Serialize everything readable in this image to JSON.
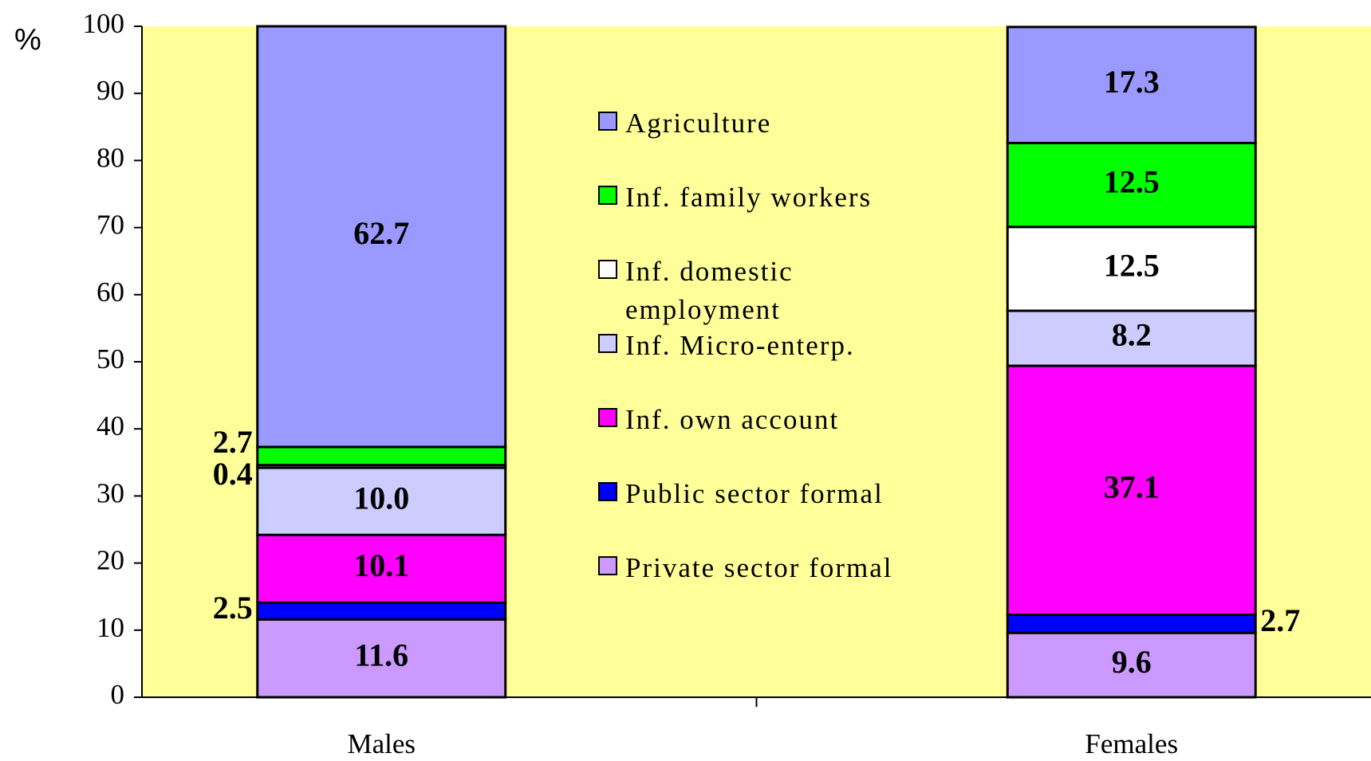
{
  "chart_data": {
    "type": "stacked-bar",
    "y_label": "%",
    "categories": [
      "Males",
      "Females"
    ],
    "series": [
      {
        "name": "Private sector formal",
        "color": "#cc99ff",
        "values": [
          11.6,
          9.6
        ]
      },
      {
        "name": "Public sector formal",
        "color": "#0000ff",
        "values": [
          2.5,
          2.7
        ]
      },
      {
        "name": "Inf. own account",
        "color": "#ff00ff",
        "values": [
          10.1,
          37.1
        ]
      },
      {
        "name": "Inf. Micro-enterp.",
        "color": "#ccccff",
        "values": [
          10,
          8.2
        ],
        "value_labels": [
          "10.0",
          "8.2"
        ]
      },
      {
        "name": "Inf. domestic employment",
        "color": "#ffffff",
        "values": [
          0.4,
          12.5
        ]
      },
      {
        "name": "Inf. family workers",
        "color": "#00ff00",
        "values": [
          2.7,
          12.5
        ]
      },
      {
        "name": "Agriculture",
        "color": "#9999ff",
        "values": [
          62.7,
          17.3
        ]
      }
    ],
    "ylim": [
      0,
      100
    ],
    "yticks": [
      0,
      10,
      20,
      30,
      40,
      50,
      60,
      70,
      80,
      90,
      100
    ],
    "legend": "center",
    "plot_background": "#ffff99"
  }
}
